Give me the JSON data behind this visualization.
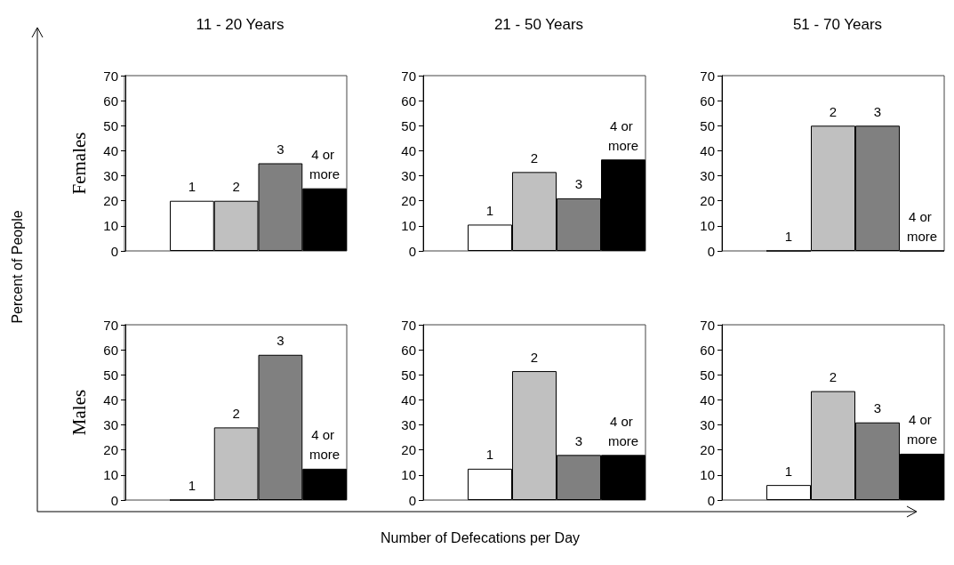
{
  "chart_data": [
    {
      "type": "bar",
      "title": "11 - 20 Years",
      "ylabel": "Females",
      "categories": [
        "1",
        "2",
        "3",
        "4 or more"
      ],
      "values": [
        20,
        20,
        35,
        25
      ],
      "colors": [
        "#ffffff",
        "#c0c0c0",
        "#808080",
        "#000000"
      ],
      "ylim": [
        0,
        70
      ],
      "yticks": [
        0,
        10,
        20,
        30,
        40,
        50,
        60,
        70
      ],
      "grid": false,
      "tick_labels": "y",
      "annotations": [
        "Percent of People",
        "Number of Defecations per Day"
      ]
    },
    {
      "type": "bar",
      "title": "21 - 50 Years",
      "categories": [
        "1",
        "2",
        "3",
        "4 or more"
      ],
      "values": [
        10.5,
        31.5,
        21,
        36.5
      ],
      "colors": [
        "#ffffff",
        "#c0c0c0",
        "#808080",
        "#000000"
      ],
      "ylim": [
        0,
        70
      ],
      "yticks": [
        0,
        10,
        20,
        30,
        40,
        50,
        60,
        70
      ],
      "grid": false,
      "tick_labels": "y"
    },
    {
      "type": "bar",
      "title": "51 - 70 Years",
      "categories": [
        "1",
        "2",
        "3",
        "4 or more"
      ],
      "values": [
        0,
        50,
        50,
        0
      ],
      "colors": [
        "#ffffff",
        "#c0c0c0",
        "#808080",
        "#000000"
      ],
      "ylim": [
        0,
        70
      ],
      "yticks": [
        0,
        10,
        20,
        30,
        40,
        50,
        60,
        70
      ],
      "grid": false,
      "tick_labels": "y"
    },
    {
      "type": "bar",
      "ylabel": "Males",
      "categories": [
        "1",
        "2",
        "3",
        "4 or more"
      ],
      "values": [
        0,
        29,
        58,
        12.5
      ],
      "colors": [
        "#ffffff",
        "#c0c0c0",
        "#808080",
        "#000000"
      ],
      "ylim": [
        0,
        70
      ],
      "yticks": [
        0,
        10,
        20,
        30,
        40,
        50,
        60,
        70
      ],
      "grid": false,
      "tick_labels": "y"
    },
    {
      "type": "bar",
      "categories": [
        "1",
        "2",
        "3",
        "4 or more"
      ],
      "values": [
        12.5,
        51.5,
        18,
        18
      ],
      "colors": [
        "#ffffff",
        "#c0c0c0",
        "#808080",
        "#000000"
      ],
      "ylim": [
        0,
        70
      ],
      "yticks": [
        0,
        10,
        20,
        30,
        40,
        50,
        60,
        70
      ],
      "grid": false,
      "tick_labels": "y"
    },
    {
      "type": "bar",
      "categories": [
        "1",
        "2",
        "3",
        "4 or more"
      ],
      "values": [
        6,
        43.5,
        31,
        18.5
      ],
      "colors": [
        "#ffffff",
        "#c0c0c0",
        "#808080",
        "#000000"
      ],
      "ylim": [
        0,
        70
      ],
      "yticks": [
        0,
        10,
        20,
        30,
        40,
        50,
        60,
        70
      ],
      "grid": false,
      "tick_labels": "y"
    }
  ]
}
